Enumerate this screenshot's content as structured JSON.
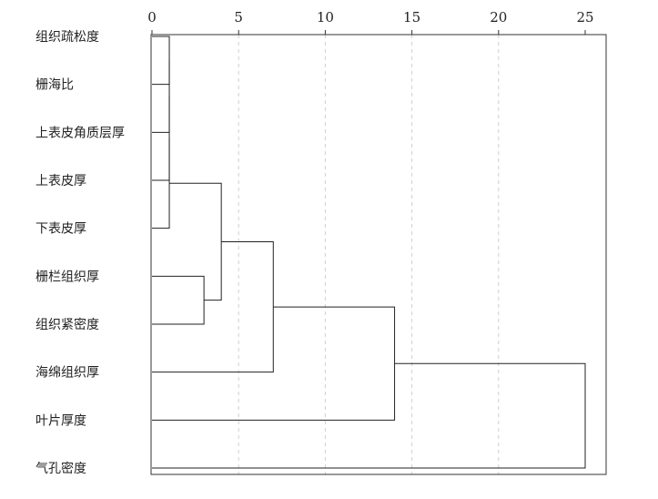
{
  "chart_data": {
    "type": "dendrogram",
    "orientation": "horizontal",
    "xlim": [
      0,
      25
    ],
    "xticks": [
      0,
      5,
      10,
      15,
      20,
      25
    ],
    "grid": true,
    "leaves": [
      "组织疏松度",
      "栅海比",
      "上表皮角质层厚",
      "上表皮厚",
      "下表皮厚",
      "栅栏组织厚",
      "组织紧密度",
      "海绵组织厚",
      "叶片厚度",
      "气孔密度"
    ],
    "merges": [
      {
        "id": "m1",
        "children": [
          "L0",
          "L1"
        ],
        "height": 1
      },
      {
        "id": "m2",
        "children": [
          "m1",
          "L2"
        ],
        "height": 1
      },
      {
        "id": "m3",
        "children": [
          "m2",
          "L3"
        ],
        "height": 1
      },
      {
        "id": "m4",
        "children": [
          "m3",
          "L4"
        ],
        "height": 1
      },
      {
        "id": "m5",
        "children": [
          "L5",
          "L6"
        ],
        "height": 3
      },
      {
        "id": "m6",
        "children": [
          "m4",
          "m5"
        ],
        "height": 4
      },
      {
        "id": "m7",
        "children": [
          "m6",
          "L7"
        ],
        "height": 7
      },
      {
        "id": "m8",
        "children": [
          "m7",
          "L8"
        ],
        "height": 14
      },
      {
        "id": "m9",
        "children": [
          "m8",
          "L9"
        ],
        "height": 25
      }
    ]
  }
}
